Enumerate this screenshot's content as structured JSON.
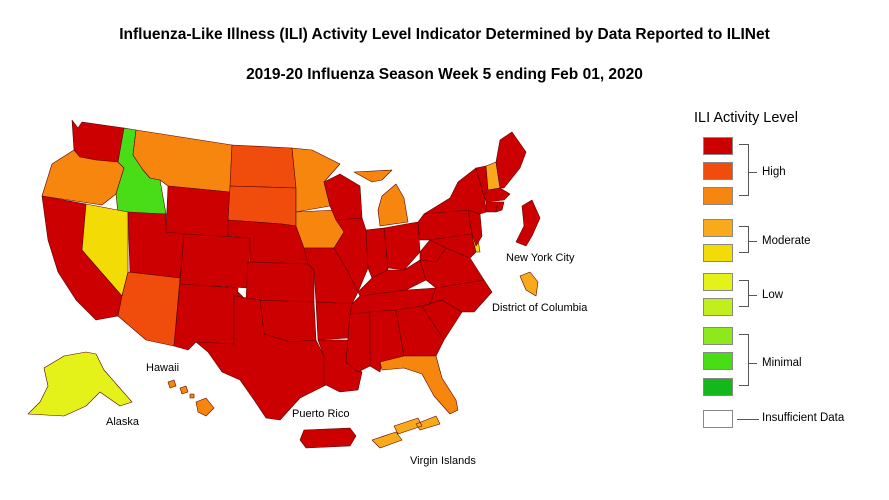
{
  "title": "Influenza-Like Illness (ILI) Activity Level Indicator Determined by Data Reported to ILINet",
  "subtitle": "2019-20 Influenza Season Week 5 ending Feb 01, 2020",
  "colors": {
    "high_3": "#cc0000",
    "high_2": "#f04d0c",
    "high_1": "#f7860f",
    "moderate_2": "#f9aa1a",
    "moderate_1": "#f3dc06",
    "low_2": "#e5f21a",
    "low_1": "#c3ee1d",
    "minimal_3": "#8ee91c",
    "minimal_2": "#48dd17",
    "minimal_1": "#14b81b",
    "insufficient": "#ffffff"
  },
  "legend": {
    "title": "ILI Activity Level",
    "groups": [
      "High",
      "Moderate",
      "Low",
      "Minimal"
    ],
    "insufficient_label": "Insufficient Data"
  },
  "labels": {
    "new_york_city": "New York City",
    "district_of_columbia": "District of Columbia",
    "hawaii": "Hawaii",
    "alaska": "Alaska",
    "puerto_rico": "Puerto Rico",
    "virgin_islands": "Virgin Islands"
  },
  "regions": {
    "WA": "high_3",
    "OR": "high_1",
    "ID": "minimal_2",
    "MT": "high_1",
    "WY": "high_3",
    "ND": "high_2",
    "SD": "high_2",
    "MN": "high_1",
    "IA": "high_1",
    "NE": "high_3",
    "CA": "high_3",
    "NV": "moderate_1",
    "UT": "high_3",
    "CO": "high_3",
    "AZ": "high_2",
    "NM": "high_3",
    "KS": "high_3",
    "OK": "high_3",
    "TX": "high_3",
    "MO": "high_3",
    "AR": "high_3",
    "LA": "high_3",
    "WI": "high_3",
    "IL": "high_3",
    "MI": "high_1",
    "IN": "high_3",
    "OH": "high_3",
    "KY": "high_3",
    "TN": "high_3",
    "MS": "high_3",
    "AL": "high_3",
    "GA": "high_3",
    "FL": "high_1",
    "SC": "high_3",
    "NC": "high_3",
    "VA": "high_3",
    "WV": "high_3",
    "PA": "high_3",
    "NY": "high_3",
    "NJ": "high_3",
    "DE": "moderate_1",
    "MD": "high_3",
    "VT": "high_3",
    "NH": "moderate_2",
    "ME": "high_3",
    "MA": "high_3",
    "CT": "high_3",
    "RI": "high_3",
    "NYC": "high_3",
    "DC": "moderate_2",
    "AK": "low_2",
    "HI": "high_1",
    "PR": "high_3",
    "VI": "moderate_2"
  }
}
